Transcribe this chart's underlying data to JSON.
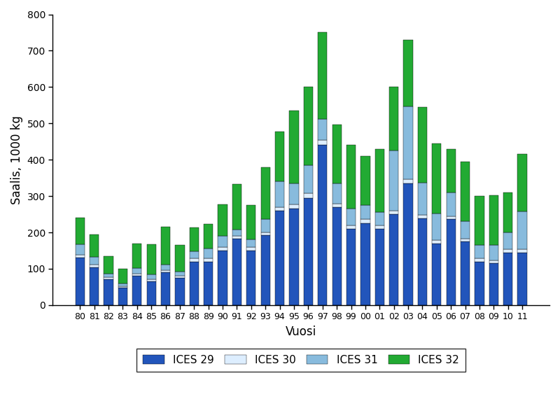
{
  "years": [
    "80",
    "81",
    "82",
    "83",
    "84",
    "85",
    "86",
    "87",
    "88",
    "89",
    "90",
    "91",
    "92",
    "93",
    "94",
    "95",
    "96",
    "97",
    "98",
    "99",
    "00",
    "01",
    "02",
    "03",
    "04",
    "05",
    "06",
    "07",
    "08",
    "09",
    "10",
    "11"
  ],
  "ices29": [
    130,
    103,
    72,
    48,
    80,
    65,
    90,
    75,
    120,
    120,
    150,
    182,
    150,
    193,
    260,
    265,
    295,
    440,
    270,
    210,
    225,
    210,
    250,
    335,
    238,
    170,
    237,
    175,
    120,
    115,
    145,
    145
  ],
  "ices30": [
    8,
    8,
    5,
    4,
    7,
    6,
    7,
    6,
    8,
    8,
    10,
    8,
    10,
    8,
    10,
    12,
    12,
    15,
    10,
    10,
    12,
    10,
    10,
    12,
    10,
    8,
    8,
    7,
    8,
    8,
    8,
    8
  ],
  "ices31": [
    30,
    22,
    10,
    8,
    15,
    14,
    15,
    12,
    20,
    28,
    30,
    18,
    20,
    35,
    70,
    58,
    78,
    58,
    55,
    45,
    38,
    35,
    165,
    200,
    88,
    75,
    65,
    48,
    38,
    42,
    48,
    105
  ],
  "ices32": [
    72,
    62,
    48,
    40,
    68,
    82,
    103,
    72,
    65,
    68,
    88,
    125,
    95,
    144,
    138,
    200,
    215,
    237,
    162,
    175,
    135,
    175,
    175,
    183,
    208,
    192,
    120,
    165,
    135,
    138,
    108,
    158
  ],
  "colors": {
    "ices29": "#2255BB",
    "ices30": "#DDEEFF",
    "ices31": "#88BBDD",
    "ices32": "#22AA33"
  },
  "ylabel": "Saalis, 1000 kg",
  "xlabel": "Vuosi",
  "ylim": [
    0,
    800
  ],
  "yticks": [
    0,
    100,
    200,
    300,
    400,
    500,
    600,
    700,
    800
  ],
  "legend_labels": [
    "ICES 29",
    "ICES 30",
    "ICES 31",
    "ICES 32"
  ],
  "bar_width": 0.65,
  "title_fontsize": 11,
  "tick_fontsize": 9,
  "label_fontsize": 12
}
